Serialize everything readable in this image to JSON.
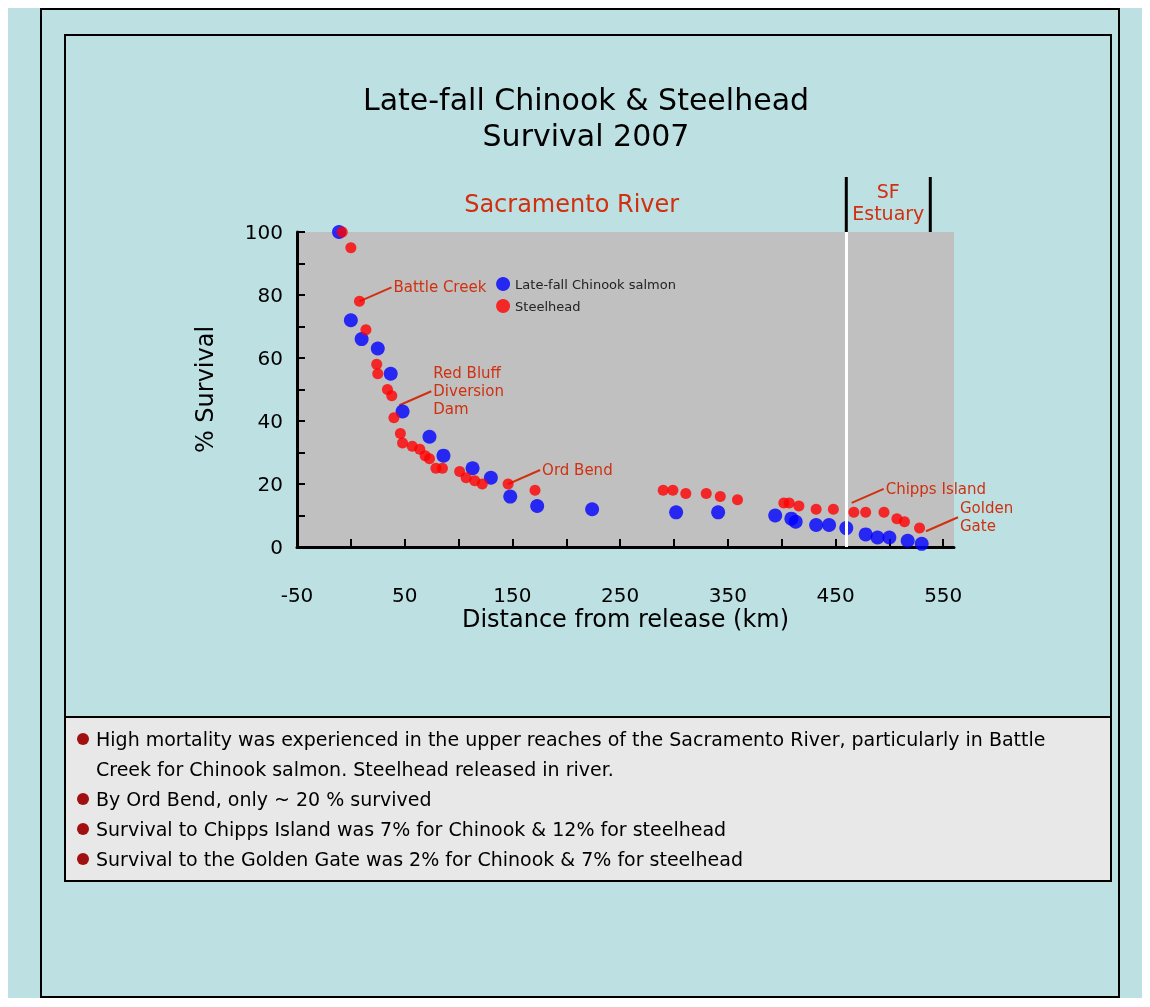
{
  "chart_data": {
    "type": "scatter",
    "title": "Late-fall Chinook & Steelhead\nSurvival 2007",
    "xlabel": "Distance from release (km)",
    "ylabel": "% Survival",
    "xlim": [
      -50,
      560
    ],
    "ylim": [
      0,
      100
    ],
    "xticks": [
      -50,
      {
        "value": 0,
        "label": null
      },
      50,
      {
        "value": 100,
        "label": null
      },
      150,
      {
        "value": 200,
        "label": null
      },
      250,
      {
        "value": 300,
        "label": null
      },
      350,
      {
        "value": 400,
        "label": null
      },
      450,
      {
        "value": 500,
        "label": null
      },
      550
    ],
    "yticks": [
      0,
      {
        "value": 10,
        "label": null
      },
      20,
      {
        "value": 30,
        "label": null
      },
      40,
      {
        "value": 50,
        "label": null
      },
      60,
      {
        "value": 70,
        "label": null
      },
      80,
      {
        "value": 90,
        "label": null
      },
      100
    ],
    "grid": false,
    "legend": "top",
    "marker": "circle",
    "series": [
      {
        "name": "Late-fall Chinook salmon",
        "color": "#0000ff",
        "x": [
          -11,
          0,
          10,
          25,
          37,
          48,
          73,
          86,
          113,
          130,
          148,
          173,
          224,
          302,
          341,
          394,
          409,
          413,
          432,
          444,
          460,
          478,
          489,
          500,
          517,
          530
        ],
        "values": [
          100,
          72,
          66,
          63,
          55,
          43,
          35,
          29,
          25,
          22,
          16,
          13,
          12,
          11,
          11,
          10,
          9,
          8,
          7,
          7,
          6,
          4,
          3,
          3,
          2,
          1
        ]
      },
      {
        "name": "Steelhead",
        "color": "#ff0000",
        "x": [
          -8,
          0,
          8,
          14,
          24,
          25,
          34,
          38,
          40,
          46,
          48,
          57,
          64,
          69,
          73,
          79,
          85,
          101,
          107,
          115,
          122,
          146,
          171,
          290,
          299,
          311,
          330,
          343,
          359,
          402,
          407,
          416,
          432,
          448,
          467,
          478,
          495,
          507,
          514,
          528
        ],
        "values": [
          100,
          95,
          78,
          69,
          58,
          55,
          50,
          48,
          41,
          36,
          33,
          32,
          31,
          29,
          28,
          25,
          25,
          24,
          22,
          21,
          20,
          20,
          18,
          18,
          18,
          17,
          17,
          16,
          15,
          14,
          14,
          13,
          12,
          12,
          11,
          11,
          11,
          9,
          8,
          6
        ]
      }
    ],
    "ref_lines": [
      {
        "axis": "x",
        "value": 460,
        "color": "#ffffff"
      }
    ],
    "annotations": [
      "Sacramento River",
      "SF\nEstuary",
      {
        "text": "Battle Creek",
        "x": 8,
        "y": 78
      },
      {
        "text": "Red Bluff\nDiversion\nDam",
        "x": 45,
        "y": 45
      },
      {
        "text": "Ord Bend",
        "x": 146,
        "y": 20
      },
      {
        "text": "Chipps Island",
        "x": 465,
        "y": 14
      },
      {
        "text": "Golden\nGate",
        "x": 534,
        "y": 5
      },
      "High mortality was experienced in the upper reaches of the Sacramento River, particularly in Battle Creek for Chinook salmon.  Steelhead released in river.",
      "By Ord Bend, only ~ 20 % survived",
      "Survival to Chipps Island was 7% for Chinook & 12% for steelhead",
      "Survival to the Golden Gate was 2% for Chinook & 7% for steelhead"
    ]
  }
}
